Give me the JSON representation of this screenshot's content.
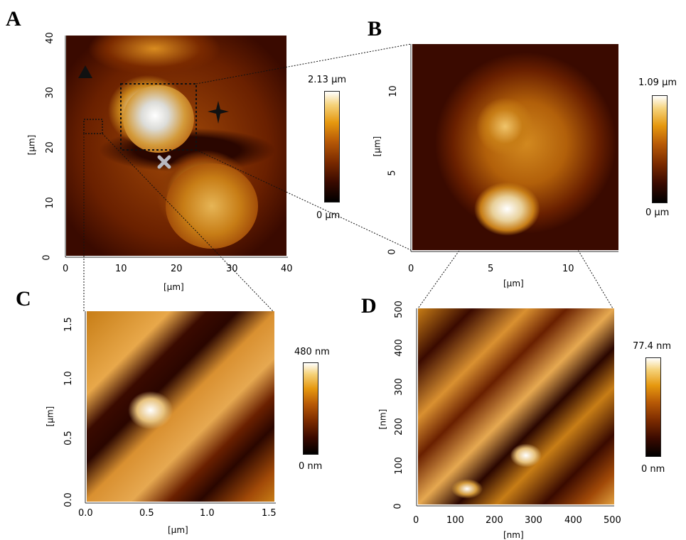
{
  "panels": {
    "A": {
      "letter": "A",
      "xticks": [
        "0",
        "10",
        "20",
        "30",
        "40"
      ],
      "yticks": [
        "0",
        "10",
        "20",
        "30",
        "40"
      ],
      "xlabel": "[µm]",
      "ylabel": "[µm]",
      "cb_max": "2.13 µm",
      "cb_min": "0 µm"
    },
    "B": {
      "letter": "B",
      "xticks": [
        "0",
        "5",
        "10"
      ],
      "yticks": [
        "0",
        "5",
        "10"
      ],
      "xlabel": "[µm]",
      "ylabel": "[µm]",
      "cb_max": "1.09 µm",
      "cb_min": "0 µm"
    },
    "C": {
      "letter": "C",
      "xticks": [
        "0.0",
        "0.5",
        "1.0",
        "1.5"
      ],
      "yticks": [
        "0.0",
        "0.5",
        "1.0",
        "1.5"
      ],
      "xlabel": "[µm]",
      "ylabel": "[µm]",
      "cb_max": "480 nm",
      "cb_min": "0 nm"
    },
    "D": {
      "letter": "D",
      "xticks": [
        "0",
        "100",
        "200",
        "300",
        "400",
        "500"
      ],
      "yticks": [
        "0",
        "100",
        "200",
        "300",
        "400",
        "500"
      ],
      "xlabel": "[nm]",
      "ylabel": "[nm]",
      "cb_max": "77.4 nm",
      "cb_min": "0 nm"
    }
  },
  "colorbar_colors": [
    "#000000",
    "#3a0a00",
    "#7a2a00",
    "#b85a06",
    "#e6980f",
    "#f5d27a",
    "#ffffff"
  ],
  "markers": [
    "triangle",
    "four-point-star",
    "cross",
    "star"
  ]
}
